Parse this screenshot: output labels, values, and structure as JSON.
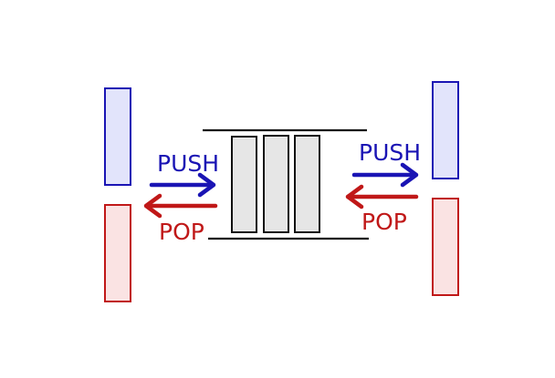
{
  "labels": {
    "push_left": "PUSH",
    "pop_left": "POP",
    "push_right": "PUSH",
    "pop_right": "POP"
  },
  "colors": {
    "push": "#1a14b4",
    "pop": "#c01818",
    "push_fill": "#e2e4fb",
    "pop_fill": "#fae3e3",
    "block_fill": "#e6e6e6",
    "line": "#111111"
  },
  "icons": {
    "push_arrow": "right-arrow-icon",
    "pop_arrow": "left-arrow-icon"
  },
  "queue": {
    "element_count": 3
  }
}
